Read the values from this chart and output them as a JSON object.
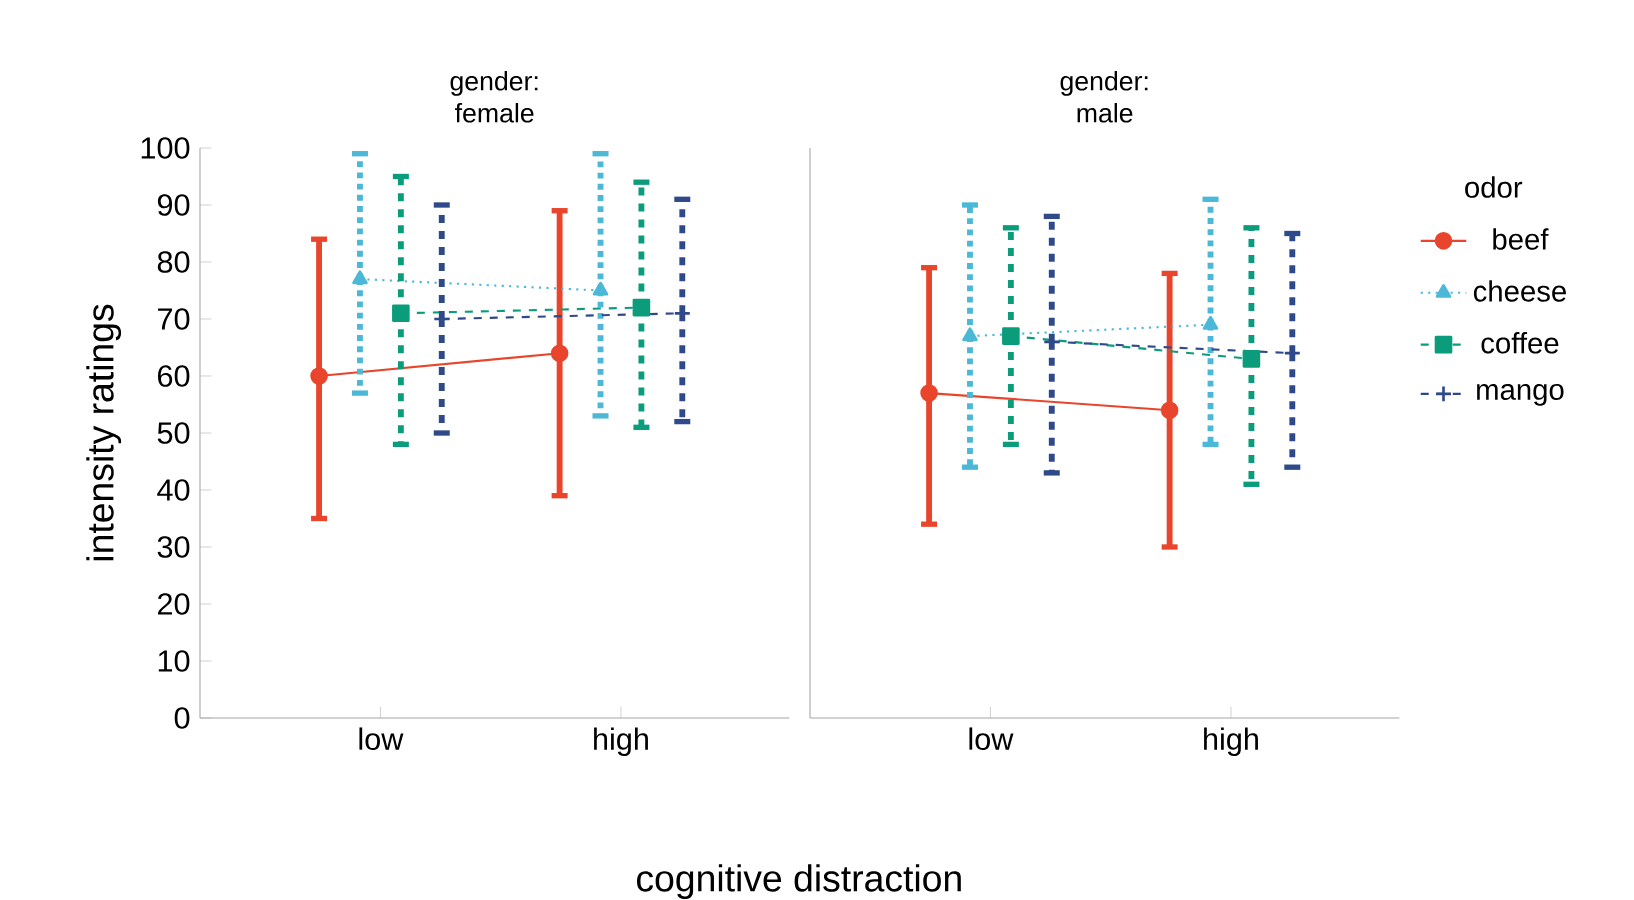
{
  "chart_data": [
    {
      "type": "line",
      "title": "gender: female",
      "categories": [
        "low",
        "high"
      ],
      "ylabel": "intensity ratings",
      "xlabel": "cognitive distraction",
      "ylim": [
        0,
        100
      ],
      "yticks": [
        0,
        10,
        20,
        30,
        40,
        50,
        60,
        70,
        80,
        90,
        100
      ],
      "legend": false,
      "series": [
        {
          "color": "#e8452c",
          "marker": "circle",
          "line_style": "solid",
          "values": [
            60,
            64
          ],
          "errors": [
            [
              35,
              84
            ],
            [
              39,
              89
            ]
          ]
        },
        {
          "color": "#4cb8d8",
          "marker": "triangle",
          "line_style": "dotted",
          "values": [
            77,
            75
          ],
          "errors": [
            [
              57,
              99
            ],
            [
              53,
              99
            ]
          ]
        },
        {
          "color": "#0b9c7c",
          "marker": "square",
          "line_style": "dashed",
          "values": [
            71,
            72
          ],
          "errors": [
            [
              48,
              95
            ],
            [
              51,
              94
            ]
          ]
        },
        {
          "color": "#2f4a8a",
          "marker": "cross",
          "line_style": "dashed",
          "values": [
            70,
            71
          ],
          "errors": [
            [
              50,
              90
            ],
            [
              52,
              91
            ]
          ]
        }
      ]
    },
    {
      "type": "line",
      "title": "gender: male",
      "categories": [
        "low",
        "high"
      ],
      "ylim": [
        0,
        100
      ],
      "yticks": [
        0,
        10,
        20,
        30,
        40,
        50,
        60,
        70,
        80,
        90,
        100
      ],
      "tick_labels": "x",
      "legend": "right",
      "legend_title": "odor",
      "series": [
        {
          "name": "beef",
          "color": "#e8452c",
          "marker": "circle",
          "line_style": "solid",
          "values": [
            57,
            54
          ],
          "errors": [
            [
              34,
              79
            ],
            [
              30,
              78
            ]
          ]
        },
        {
          "name": "cheese",
          "color": "#4cb8d8",
          "marker": "triangle",
          "line_style": "dotted",
          "values": [
            67,
            69
          ],
          "errors": [
            [
              44,
              90
            ],
            [
              48,
              91
            ]
          ]
        },
        {
          "name": "coffee",
          "color": "#0b9c7c",
          "marker": "square",
          "line_style": "dashed",
          "values": [
            67,
            63
          ],
          "errors": [
            [
              48,
              86
            ],
            [
              41,
              86
            ]
          ]
        },
        {
          "name": "mango",
          "color": "#2f4a8a",
          "marker": "cross",
          "line_style": "dashed",
          "values": [
            66,
            64
          ],
          "errors": [
            [
              43,
              88
            ],
            [
              44,
              85
            ]
          ]
        }
      ]
    }
  ]
}
